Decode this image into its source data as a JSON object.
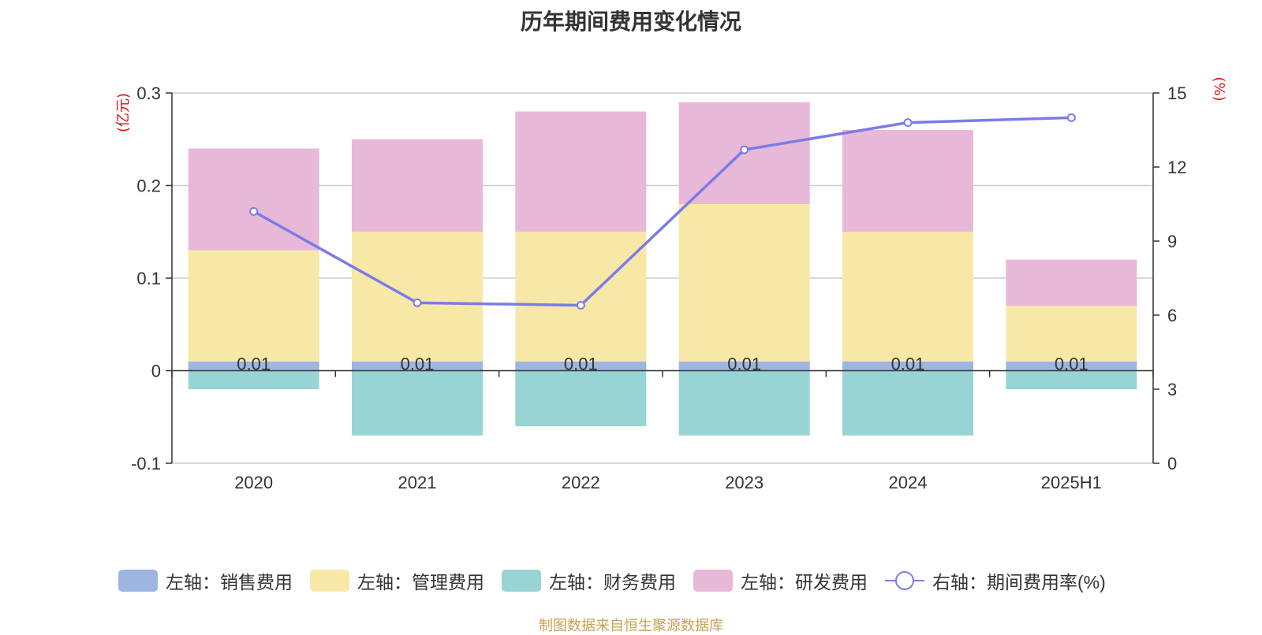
{
  "title": "历年期间费用变化情况",
  "source": "制图数据来自恒生聚源数据库",
  "colors": {
    "sales": "#9db5e0",
    "admin": "#f7e8a8",
    "finance": "#98d4d4",
    "rd": "#e8b8d8",
    "rate": "#7b7be8",
    "axis_unit": "#e01010"
  },
  "chart_data": {
    "type": "bar",
    "stacked": true,
    "categories": [
      "2020",
      "2021",
      "2022",
      "2023",
      "2024",
      "2025H1"
    ],
    "left_axis": {
      "unit": "(亿元)",
      "ylim": [
        -0.1,
        0.3
      ],
      "ticks": [
        "-0.1",
        "0",
        "0.1",
        "0.2",
        "0.3"
      ]
    },
    "right_axis": {
      "unit": "(%)",
      "ylim": [
        0,
        15
      ],
      "ticks": [
        "0",
        "3",
        "6",
        "9",
        "12",
        "15"
      ]
    },
    "series": [
      {
        "name": "左轴：销售费用",
        "key": "sales",
        "axis": "left",
        "values": [
          0.01,
          0.01,
          0.01,
          0.01,
          0.01,
          0.01
        ]
      },
      {
        "name": "左轴：管理费用",
        "key": "admin",
        "axis": "left",
        "values": [
          0.12,
          0.14,
          0.14,
          0.17,
          0.14,
          0.06
        ]
      },
      {
        "name": "左轴：财务费用",
        "key": "finance",
        "axis": "left",
        "values": [
          -0.02,
          -0.07,
          -0.06,
          -0.07,
          -0.07,
          -0.02
        ]
      },
      {
        "name": "左轴：研发费用",
        "key": "rd",
        "axis": "left",
        "values": [
          0.11,
          0.1,
          0.13,
          0.11,
          0.11,
          0.05
        ]
      },
      {
        "name": "右轴：期间费用率(%)",
        "key": "rate",
        "axis": "right",
        "type": "line",
        "values": [
          10.2,
          6.5,
          6.4,
          12.7,
          13.8,
          14.0
        ]
      }
    ],
    "data_labels": [
      "0.01",
      "0.01",
      "0.01",
      "0.01",
      "0.01",
      "0.01"
    ],
    "grid": true,
    "legend_position": "bottom"
  }
}
